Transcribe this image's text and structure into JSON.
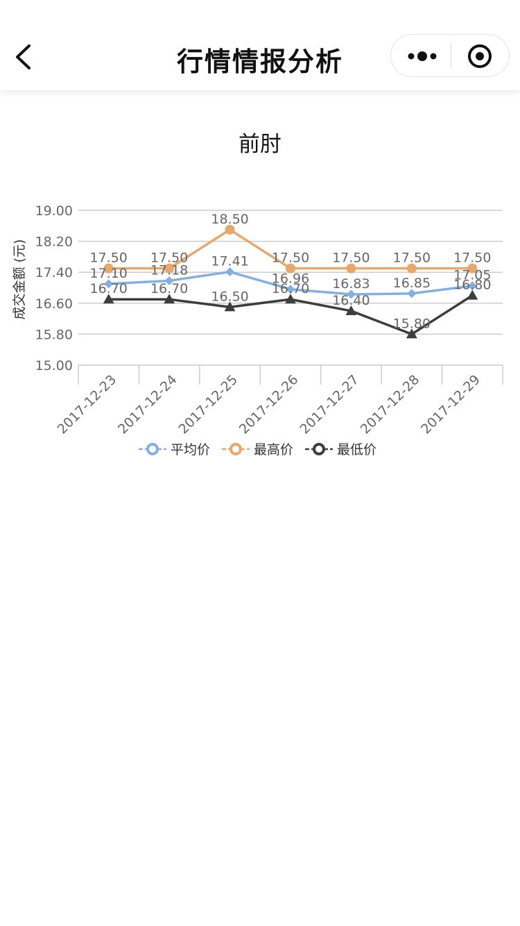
{
  "nav": {
    "title": "行情情报分析",
    "back_icon": "chevron-left-icon",
    "more_icon": "more-dots-icon",
    "close_icon": "target-circle-icon"
  },
  "chart_data": {
    "type": "line",
    "title": "前肘",
    "xlabel": "",
    "ylabel": "成交金额 (元)",
    "ylim": [
      15.0,
      19.0
    ],
    "y_ticks": [
      "19.00",
      "18.20",
      "17.40",
      "16.60",
      "15.80",
      "15.00"
    ],
    "categories": [
      "2017-12-23",
      "2017-12-24",
      "2017-12-25",
      "2017-12-26",
      "2017-12-27",
      "2017-12-28",
      "2017-12-29"
    ],
    "series": [
      {
        "name": "平均价",
        "color": "#82b0e3",
        "marker": "diamond",
        "values": [
          17.1,
          17.18,
          17.41,
          16.96,
          16.83,
          16.85,
          17.05
        ]
      },
      {
        "name": "最高价",
        "color": "#e8a86b",
        "marker": "circle",
        "values": [
          17.5,
          17.5,
          18.5,
          17.5,
          17.5,
          17.5,
          17.5
        ]
      },
      {
        "name": "最低价",
        "color": "#3d3d40",
        "marker": "triangle",
        "values": [
          16.7,
          16.7,
          16.5,
          16.7,
          16.4,
          15.8,
          16.8
        ]
      }
    ],
    "grid": true,
    "legend": "bottom"
  }
}
